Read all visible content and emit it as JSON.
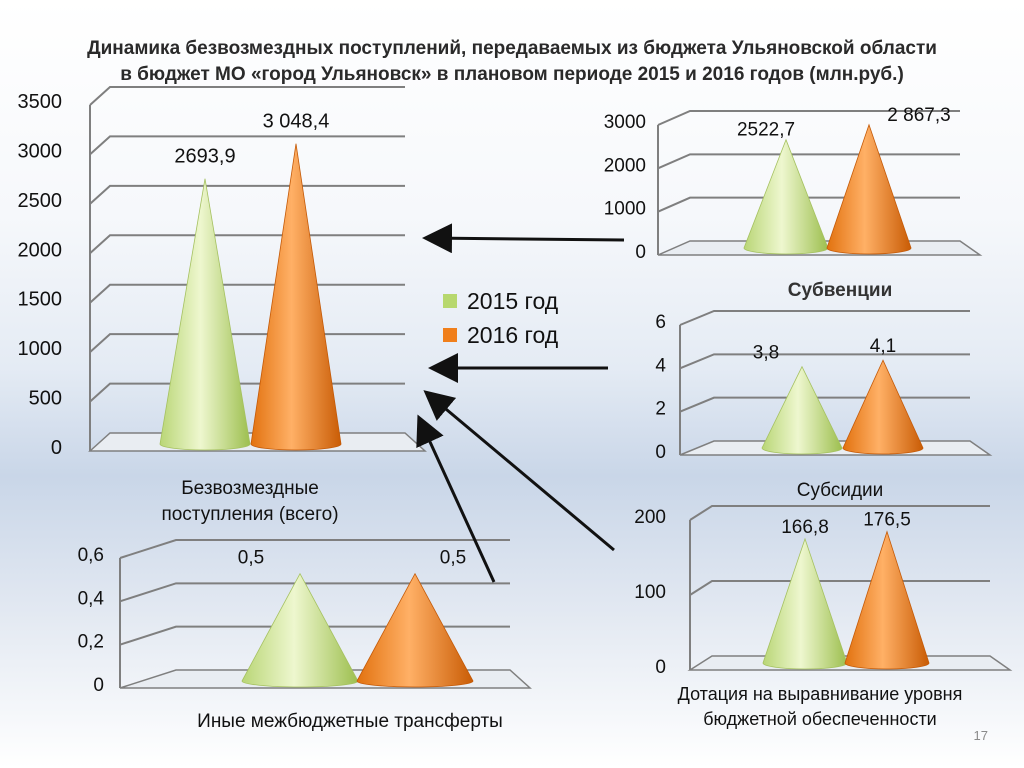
{
  "slide": {
    "title_line1": "Динамика безвозмездных поступлений, передаваемых из бюджета Ульяновской области",
    "title_line2": "в бюджет МО «город Ульяновск» в плановом периоде 2015 и 2016 годов (млн.руб.)",
    "page_number": "17"
  },
  "legend": {
    "items": [
      {
        "label": "2015 год",
        "color": "#b7d86e"
      },
      {
        "label": "2016 год",
        "color": "#f07f1b"
      }
    ]
  },
  "colors": {
    "series_2015": "#b7d86e",
    "series_2016": "#f07f1b",
    "gridline": "#7f7f7f",
    "arrow": "#111111"
  },
  "chart_data": [
    {
      "id": "total",
      "type": "bar",
      "shape": "cone",
      "caption_lines": [
        "Безвозмездные",
        "поступления (всего)"
      ],
      "series": [
        {
          "name": "2015 год",
          "value": 2693.9,
          "label": "2693,9"
        },
        {
          "name": "2016 год",
          "value": 3048.4,
          "label": "3 048,4"
        }
      ],
      "ylim": [
        0,
        3500
      ],
      "yticks": [
        0,
        500,
        1000,
        1500,
        2000,
        2500,
        3000,
        3500
      ],
      "ytick_labels": [
        "0",
        "500",
        "1000",
        "1500",
        "2000",
        "2500",
        "3000",
        "3500"
      ],
      "grid": true
    },
    {
      "id": "subventions",
      "type": "bar",
      "shape": "cone",
      "caption_lines": [
        "Субвенции"
      ],
      "series": [
        {
          "name": "2015 год",
          "value": 2522.7,
          "label": "2522,7"
        },
        {
          "name": "2016 год",
          "value": 2867.3,
          "label": "2 867,3"
        }
      ],
      "ylim": [
        0,
        3000
      ],
      "yticks": [
        0,
        1000,
        2000,
        3000
      ],
      "ytick_labels": [
        "0",
        "1000",
        "2000",
        "3000"
      ],
      "grid": true
    },
    {
      "id": "subsidies",
      "type": "bar",
      "shape": "cone",
      "caption_lines": [
        "Субсидии"
      ],
      "series": [
        {
          "name": "2015 год",
          "value": 3.8,
          "label": "3,8"
        },
        {
          "name": "2016 год",
          "value": 4.1,
          "label": "4,1"
        }
      ],
      "ylim": [
        0,
        6
      ],
      "yticks": [
        0,
        2,
        4,
        6
      ],
      "ytick_labels": [
        "0",
        "2",
        "4",
        "6"
      ],
      "grid": true
    },
    {
      "id": "dotation",
      "type": "bar",
      "shape": "cone",
      "caption_lines": [
        "Дотация на выравнивание уровня",
        "бюджетной обеспеченности"
      ],
      "series": [
        {
          "name": "2015 год",
          "value": 166.8,
          "label": "166,8"
        },
        {
          "name": "2016 год",
          "value": 176.5,
          "label": "176,5"
        }
      ],
      "ylim": [
        0,
        200
      ],
      "yticks": [
        0,
        100,
        200
      ],
      "ytick_labels": [
        "0",
        "100",
        "200"
      ],
      "grid": true
    },
    {
      "id": "other",
      "type": "bar",
      "shape": "cone",
      "caption_lines": [
        "Иные межбюджетные трансферты"
      ],
      "series": [
        {
          "name": "2015 год",
          "value": 0.5,
          "label": "0,5"
        },
        {
          "name": "2016 год",
          "value": 0.5,
          "label": "0,5"
        }
      ],
      "ylim": [
        0,
        0.6
      ],
      "yticks": [
        0,
        0.2,
        0.4,
        0.6
      ],
      "ytick_labels": [
        "0",
        "0,2",
        "0,4",
        "0,6"
      ],
      "grid": true
    }
  ]
}
